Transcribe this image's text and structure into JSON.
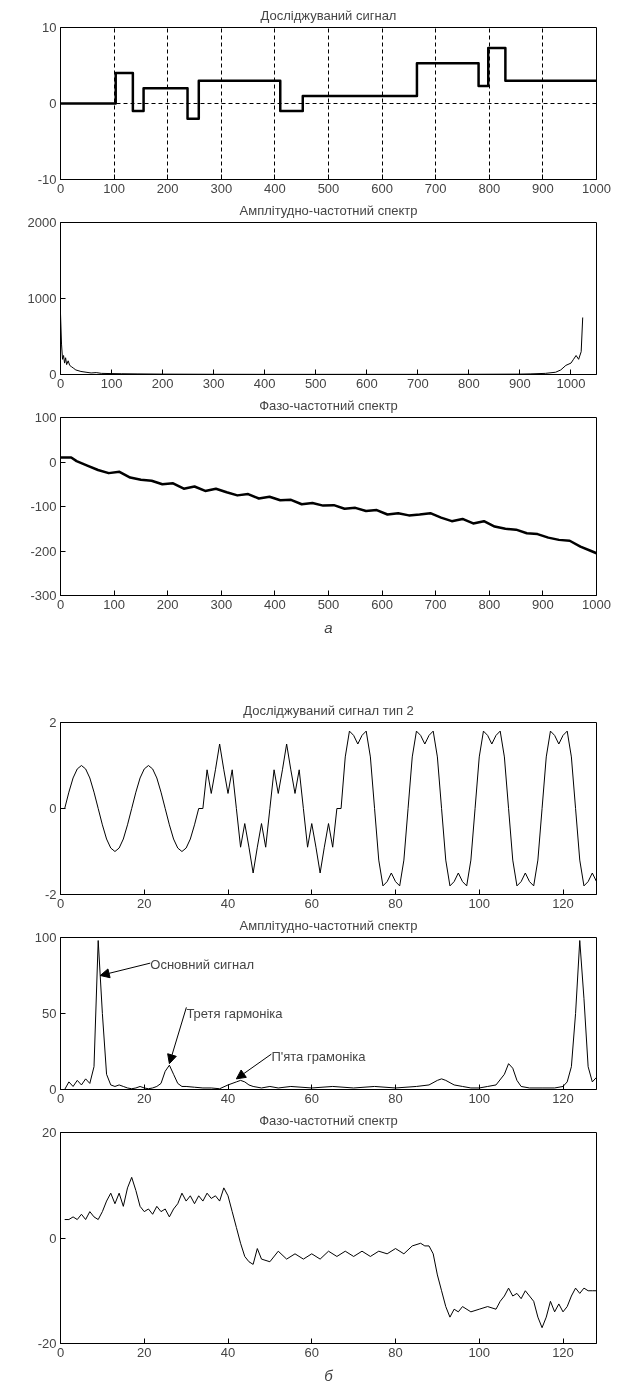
{
  "chart_data": [
    {
      "type": "step",
      "title": "Досліджуваний сигнал",
      "x": [
        0,
        103,
        135,
        155,
        237,
        258,
        410,
        452,
        665,
        780,
        798,
        830,
        1000
      ],
      "series": [
        {
          "color": "#000000",
          "values": [
            0,
            4,
            -1,
            2,
            -2,
            3,
            -1,
            1,
            5.3,
            2.3,
            7.3,
            3,
            3
          ]
        }
      ],
      "xlim": [
        0,
        1000
      ],
      "ylim": [
        -10,
        10
      ],
      "xticks": [
        0,
        100,
        200,
        300,
        400,
        500,
        600,
        700,
        800,
        900,
        1000
      ],
      "yticks": [
        -10,
        0,
        10
      ],
      "grid": true,
      "line_style": "solid"
    },
    {
      "type": "line",
      "title": "Амплітудно-частотний спектр",
      "x": [
        0,
        2,
        4,
        6,
        8,
        10,
        12,
        15,
        18,
        22,
        26,
        30,
        40,
        50,
        60,
        70,
        80,
        100,
        120,
        150,
        200,
        300,
        400,
        500,
        600,
        700,
        800,
        900,
        920,
        950,
        970,
        980,
        990,
        1000,
        1005,
        1010,
        1015,
        1020,
        1023
      ],
      "series": [
        {
          "color": "#000000",
          "values": [
            800,
            400,
            200,
            250,
            150,
            220,
            130,
            180,
            120,
            100,
            80,
            60,
            40,
            30,
            20,
            25,
            15,
            12,
            10,
            8,
            5,
            3,
            2,
            2,
            2,
            2,
            3,
            5,
            8,
            15,
            30,
            60,
            120,
            150,
            200,
            250,
            200,
            300,
            750
          ]
        }
      ],
      "xlim": [
        0,
        1050
      ],
      "ylim": [
        0,
        2000
      ],
      "xticks": [
        0,
        100,
        200,
        300,
        400,
        500,
        600,
        700,
        800,
        900,
        1000
      ],
      "yticks": [
        0,
        1000,
        2000
      ],
      "grid": false,
      "line_style": "solid"
    },
    {
      "type": "line",
      "title": "Фазо-частотний спектр",
      "annotations": [
        "а"
      ],
      "x": [
        0,
        20,
        30,
        50,
        70,
        90,
        110,
        130,
        150,
        170,
        190,
        210,
        230,
        250,
        270,
        290,
        310,
        330,
        350,
        370,
        390,
        410,
        430,
        450,
        470,
        490,
        510,
        530,
        550,
        570,
        590,
        610,
        630,
        650,
        670,
        690,
        710,
        730,
        750,
        770,
        790,
        810,
        830,
        850,
        870,
        890,
        910,
        930,
        950,
        970,
        990,
        1000
      ],
      "series": [
        {
          "color": "#000000",
          "values": [
            10,
            10,
            2,
            -8,
            -18,
            -25,
            -22,
            -35,
            -40,
            -42,
            -50,
            -48,
            -60,
            -55,
            -65,
            -60,
            -68,
            -75,
            -72,
            -82,
            -78,
            -86,
            -85,
            -95,
            -92,
            -98,
            -97,
            -105,
            -103,
            -110,
            -108,
            -118,
            -115,
            -120,
            -118,
            -115,
            -125,
            -133,
            -128,
            -138,
            -133,
            -145,
            -150,
            -152,
            -160,
            -162,
            -170,
            -175,
            -177,
            -190,
            -200,
            -205
          ]
        }
      ],
      "xlim": [
        0,
        1000
      ],
      "ylim": [
        -300,
        100
      ],
      "xticks": [
        0,
        100,
        200,
        300,
        400,
        500,
        600,
        700,
        800,
        900,
        1000
      ],
      "yticks": [
        -300,
        -200,
        -100,
        0,
        100
      ],
      "grid": false,
      "line_style": "solid"
    },
    {
      "type": "line",
      "title": "Досліджуваний сигнал тип 2",
      "x": [
        0,
        1,
        2,
        3,
        4,
        5,
        6,
        7,
        8,
        9,
        10,
        11,
        12,
        13,
        14,
        15,
        16,
        17,
        18,
        19,
        20,
        21,
        22,
        23,
        24,
        25,
        26,
        27,
        28,
        29,
        30,
        31,
        32,
        33,
        34,
        35,
        36,
        37,
        38,
        39,
        40,
        41,
        42,
        43,
        44,
        45,
        46,
        47,
        48,
        49,
        50,
        51,
        52,
        53,
        54,
        55,
        56,
        57,
        58,
        59,
        60,
        61,
        62,
        63,
        64,
        65,
        66,
        67,
        68,
        69,
        70,
        71,
        72,
        73,
        74,
        75,
        76,
        77,
        78,
        79,
        80,
        81,
        82,
        83,
        84,
        85,
        86,
        87,
        88,
        89,
        90,
        91,
        92,
        93,
        94,
        95,
        96,
        97,
        98,
        99,
        100,
        101,
        102,
        103,
        104,
        105,
        106,
        107,
        108,
        109,
        110,
        111,
        112,
        113,
        114,
        115,
        116,
        117,
        118,
        119,
        120,
        121,
        122,
        123,
        124,
        125,
        126,
        127,
        128
      ],
      "series": [
        {
          "color": "#000000",
          "values": [
            0,
            0,
            0.38,
            0.71,
            0.92,
            1,
            0.92,
            0.71,
            0.38,
            0,
            -0.38,
            -0.71,
            -0.92,
            -1,
            -0.92,
            -0.71,
            -0.38,
            0,
            0.38,
            0.71,
            0.92,
            1,
            0.92,
            0.71,
            0.38,
            0,
            -0.38,
            -0.71,
            -0.92,
            -1,
            -0.92,
            -0.71,
            -0.38,
            0,
            0,
            0.9,
            0.35,
            0.9,
            1.5,
            0.9,
            0.35,
            0.9,
            0,
            -0.9,
            -0.35,
            -0.9,
            -1.5,
            -0.9,
            -0.35,
            -0.9,
            0,
            0.9,
            0.35,
            0.9,
            1.5,
            0.9,
            0.35,
            0.9,
            0,
            -0.9,
            -0.35,
            -0.9,
            -1.5,
            -0.9,
            -0.35,
            -0.9,
            0,
            0,
            1.2,
            1.8,
            1.7,
            1.5,
            1.7,
            1.8,
            1.2,
            0,
            -1.2,
            -1.8,
            -1.7,
            -1.5,
            -1.7,
            -1.8,
            -1.2,
            0,
            1.2,
            1.8,
            1.7,
            1.5,
            1.7,
            1.8,
            1.2,
            0,
            -1.2,
            -1.8,
            -1.7,
            -1.5,
            -1.7,
            -1.8,
            -1.2,
            0,
            1.2,
            1.8,
            1.7,
            1.5,
            1.7,
            1.8,
            1.2,
            0,
            -1.2,
            -1.8,
            -1.7,
            -1.5,
            -1.7,
            -1.8,
            -1.2,
            0,
            1.2,
            1.8,
            1.7,
            1.5,
            1.7,
            1.8,
            1.2,
            0,
            -1.2,
            -1.8,
            -1.7,
            -1.5,
            -1.7
          ]
        }
      ],
      "xlim": [
        0,
        128
      ],
      "ylim": [
        -2,
        2
      ],
      "xticks": [
        0,
        20,
        40,
        60,
        80,
        100,
        120
      ],
      "yticks": [
        -2,
        0,
        2
      ],
      "grid": false,
      "line_style": "solid"
    },
    {
      "type": "line",
      "title": "Амплітудно-частотний спектр",
      "annotations": [
        {
          "text": "Основний сигнал",
          "x": 9.5,
          "y": 75
        },
        {
          "text": "Третя гармоніка",
          "x": 26,
          "y": 17
        },
        {
          "text": "П'ята грамоніка",
          "x": 42,
          "y": 7
        }
      ],
      "x": [
        1,
        2,
        3,
        4,
        5,
        6,
        7,
        8,
        9,
        10,
        11,
        12,
        13,
        14,
        15,
        16,
        17,
        18,
        19,
        20,
        21,
        22,
        23,
        24,
        25,
        26,
        27,
        28,
        29,
        30,
        32,
        34,
        36,
        38,
        40,
        42,
        43,
        44,
        45,
        46,
        48,
        50,
        52,
        55,
        60,
        65,
        70,
        75,
        80,
        85,
        88,
        90,
        91,
        92,
        94,
        96,
        98,
        100,
        102,
        104,
        106,
        107,
        108,
        109,
        110,
        112,
        115,
        118,
        120,
        121,
        122,
        123,
        124,
        125,
        126,
        127,
        128
      ],
      "series": [
        {
          "color": "#000000",
          "values": [
            0,
            5,
            2,
            6,
            3,
            7,
            4,
            15,
            98,
            50,
            10,
            3,
            2,
            3,
            2,
            1,
            0.5,
            1,
            2,
            1,
            0.5,
            1,
            2,
            4,
            12,
            16,
            10,
            4,
            2,
            2,
            1.5,
            1,
            1,
            0.5,
            3,
            5,
            6,
            5,
            3,
            2,
            1,
            2,
            1,
            2,
            1,
            2,
            1,
            2,
            1,
            2,
            3,
            6,
            7,
            6,
            3,
            2,
            1,
            1,
            2,
            3,
            10,
            17,
            14,
            6,
            2,
            1,
            1,
            1,
            2,
            5,
            15,
            50,
            98,
            60,
            15,
            5,
            8
          ]
        }
      ],
      "xlim": [
        0,
        128
      ],
      "ylim": [
        0,
        100
      ],
      "xticks": [
        0,
        20,
        40,
        60,
        80,
        100,
        120
      ],
      "yticks": [
        0,
        50,
        100
      ],
      "grid": false,
      "line_style": "solid"
    },
    {
      "type": "line",
      "title": "Фазо-частотний спектр",
      "annotations": [
        "б"
      ],
      "x": [
        1,
        2,
        3,
        4,
        5,
        6,
        7,
        8,
        9,
        10,
        11,
        12,
        13,
        14,
        15,
        16,
        17,
        18,
        19,
        20,
        21,
        22,
        23,
        24,
        25,
        26,
        27,
        28,
        29,
        30,
        31,
        32,
        33,
        34,
        35,
        36,
        37,
        38,
        39,
        40,
        41,
        42,
        43,
        44,
        45,
        46,
        47,
        48,
        50,
        52,
        54,
        56,
        58,
        60,
        62,
        64,
        66,
        68,
        70,
        72,
        74,
        76,
        78,
        80,
        82,
        84,
        86,
        87,
        88,
        89,
        90,
        91,
        92,
        93,
        94,
        95,
        96,
        98,
        100,
        102,
        104,
        105,
        106,
        107,
        108,
        109,
        110,
        111,
        112,
        113,
        114,
        115,
        116,
        117,
        118,
        119,
        120,
        121,
        122,
        123,
        124,
        125,
        126,
        127,
        128
      ],
      "series": [
        {
          "color": "#000000",
          "values": [
            3.5,
            3.5,
            4,
            3.5,
            4.5,
            3.5,
            5,
            4,
            3.5,
            5,
            7,
            8.5,
            6.5,
            8.5,
            6,
            9.5,
            11.5,
            9,
            6,
            5,
            5.5,
            4.5,
            6,
            5,
            5.5,
            4,
            5.5,
            6.5,
            8.5,
            7,
            8,
            6.5,
            8,
            7,
            8.5,
            7.5,
            8,
            7,
            9.5,
            8,
            5,
            2,
            -1,
            -3.5,
            -4.5,
            -5,
            -2,
            -4,
            -4.5,
            -2.5,
            -4,
            -3,
            -4,
            -3,
            -4,
            -2.5,
            -3.5,
            -2.5,
            -3.5,
            -2.5,
            -3.5,
            -2.5,
            -3,
            -2,
            -3,
            -1.5,
            -1,
            -1.5,
            -1.5,
            -3,
            -7,
            -10,
            -13,
            -15,
            -13.5,
            -14,
            -13,
            -14,
            -13.5,
            -13,
            -13.5,
            -12,
            -11,
            -9.5,
            -11,
            -10.5,
            -11.5,
            -10,
            -11,
            -12,
            -15,
            -17,
            -15,
            -12,
            -14,
            -12.5,
            -14,
            -13,
            -11,
            -9.5,
            -10.5,
            -9.5,
            -10,
            -10,
            -10
          ]
        }
      ],
      "xlim": [
        0,
        128
      ],
      "ylim": [
        -20,
        20
      ],
      "xticks": [
        0,
        20,
        40,
        60,
        80,
        100,
        120
      ],
      "yticks": [
        -20,
        0,
        20
      ],
      "grid": false,
      "line_style": "solid"
    }
  ]
}
